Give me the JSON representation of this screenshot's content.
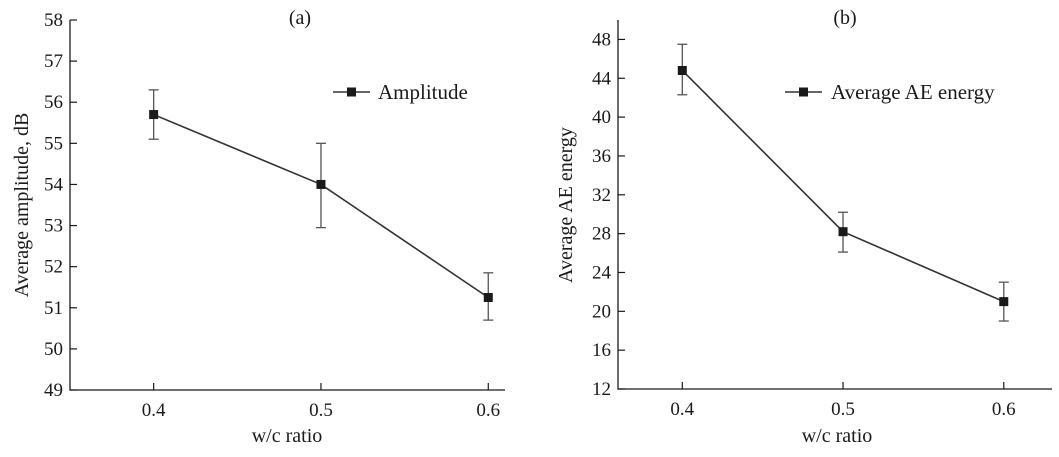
{
  "chart_data": [
    {
      "type": "line",
      "panel_label": "(a)",
      "title": "",
      "xlabel": "w/c ratio",
      "ylabel": "Average amplitude, dB",
      "x": [
        "0.4",
        "0.5",
        "0.6"
      ],
      "xlim": [
        0.35,
        0.61
      ],
      "ylim": [
        49,
        58
      ],
      "yticks": [
        "49",
        "50",
        "51",
        "52",
        "53",
        "54",
        "55",
        "56",
        "57",
        "58"
      ],
      "grid": false,
      "legend_position": "top-right",
      "series": [
        {
          "name": "Amplitude",
          "marker": "square",
          "values": [
            55.7,
            54.0,
            51.25
          ],
          "error_low": [
            55.1,
            52.95,
            50.7
          ],
          "error_high": [
            56.3,
            55.0,
            51.85
          ]
        }
      ]
    },
    {
      "type": "line",
      "panel_label": "(b)",
      "title": "",
      "xlabel": "w/c ratio",
      "ylabel": "Average AE energy",
      "x": [
        "0.4",
        "0.5",
        "0.6"
      ],
      "xlim": [
        0.36,
        0.63
      ],
      "ylim": [
        12,
        50
      ],
      "yticks": [
        "12",
        "16",
        "20",
        "24",
        "28",
        "32",
        "36",
        "40",
        "44",
        "48"
      ],
      "grid": false,
      "legend_position": "top-right",
      "series": [
        {
          "name": "Average AE energy",
          "marker": "square",
          "values": [
            44.8,
            28.2,
            21.0
          ],
          "error_low": [
            42.3,
            26.1,
            19.0
          ],
          "error_high": [
            47.5,
            30.2,
            23.0
          ]
        }
      ]
    }
  ]
}
